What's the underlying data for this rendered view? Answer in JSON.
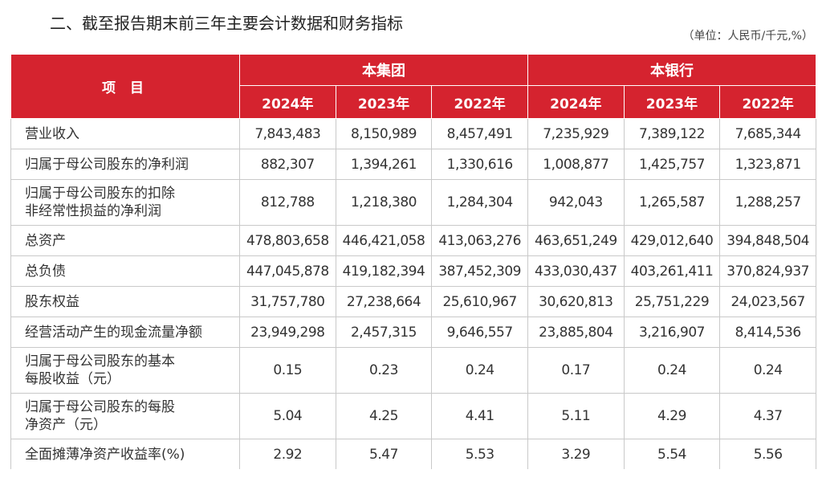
{
  "title": "二、截至报告期末前三年主要会计数据和财务指标",
  "unit": "（单位：人民币/千元,%）",
  "header": {
    "item": "项 目",
    "groups": [
      "本集团",
      "本银行"
    ],
    "years": [
      "2024年",
      "2023年",
      "2022年",
      "2024年",
      "2023年",
      "2022年"
    ]
  },
  "rows": [
    {
      "label": [
        "营业收入"
      ],
      "values": [
        "7,843,483",
        "8,150,989",
        "8,457,491",
        "7,235,929",
        "7,389,122",
        "7,685,344"
      ]
    },
    {
      "label": [
        "归属于母公司股东的净利润"
      ],
      "values": [
        "882,307",
        "1,394,261",
        "1,330,616",
        "1,008,877",
        "1,425,757",
        "1,323,871"
      ]
    },
    {
      "label": [
        "归属于母公司股东的扣除",
        "非经常性损益的净利润"
      ],
      "values": [
        "812,788",
        "1,218,380",
        "1,284,304",
        "942,043",
        "1,265,587",
        "1,288,257"
      ]
    },
    {
      "label": [
        "总资产"
      ],
      "values": [
        "478,803,658",
        "446,421,058",
        "413,063,276",
        "463,651,249",
        "429,012,640",
        "394,848,504"
      ]
    },
    {
      "label": [
        "总负债"
      ],
      "values": [
        "447,045,878",
        "419,182,394",
        "387,452,309",
        "433,030,437",
        "403,261,411",
        "370,824,937"
      ]
    },
    {
      "label": [
        "股东权益"
      ],
      "values": [
        "31,757,780",
        "27,238,664",
        "25,610,967",
        "30,620,813",
        "25,751,229",
        "24,023,567"
      ]
    },
    {
      "label": [
        "经营活动产生的现金流量净额"
      ],
      "values": [
        "23,949,298",
        "2,457,315",
        "9,646,557",
        "23,885,804",
        "3,216,907",
        "8,414,536"
      ]
    },
    {
      "label": [
        "归属于母公司股东的基本",
        "每股收益（元）"
      ],
      "values": [
        "0.15",
        "0.23",
        "0.24",
        "0.17",
        "0.24",
        "0.24"
      ]
    },
    {
      "label": [
        "归属于母公司股东的每股",
        "净资产（元）"
      ],
      "values": [
        "5.04",
        "4.25",
        "4.41",
        "5.11",
        "4.29",
        "4.37"
      ]
    },
    {
      "label": [
        "全面摊薄净资产收益率(%)"
      ],
      "values": [
        "2.92",
        "5.47",
        "5.53",
        "3.29",
        "5.54",
        "5.56"
      ]
    }
  ]
}
